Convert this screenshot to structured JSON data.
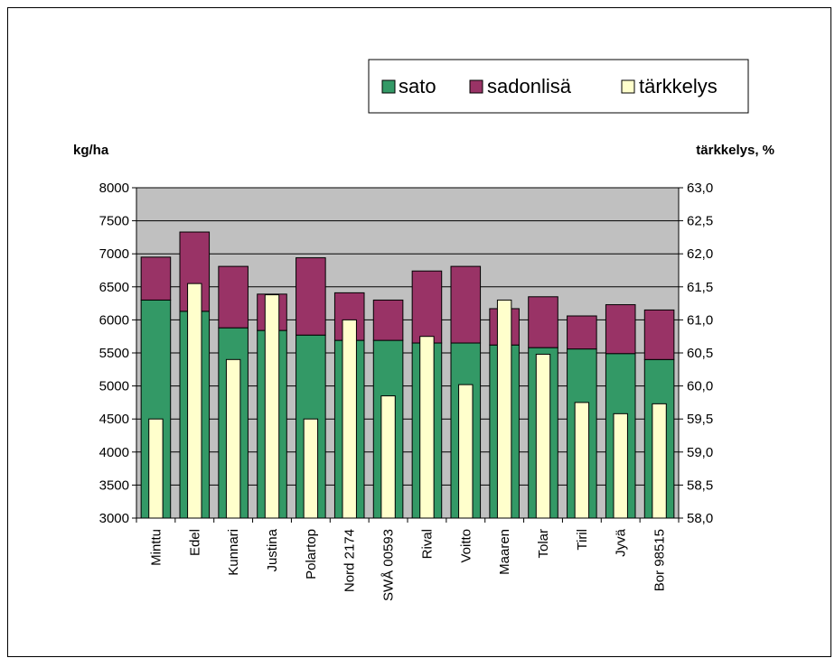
{
  "chart_data": {
    "type": "bar",
    "title": "",
    "ylabel": "kg/ha",
    "y2label": "tärkkelys, %",
    "ylim": [
      3000,
      8000
    ],
    "y2lim": [
      58.0,
      63.0
    ],
    "yticks": [
      "3000",
      "3500",
      "4000",
      "4500",
      "5000",
      "5500",
      "6000",
      "6500",
      "7000",
      "7500",
      "8000"
    ],
    "y2ticks": [
      "58,0",
      "58,5",
      "59,0",
      "59,5",
      "60,0",
      "60,5",
      "61,0",
      "61,5",
      "62,0",
      "62,5",
      "63,0"
    ],
    "grid": true,
    "legend_position": "top-right",
    "categories": [
      "Minttu",
      "Edel",
      "Kunnari",
      "Justina",
      "Polartop",
      "Nord 2174",
      "SWÅ 00593",
      "Rival",
      "Voitto",
      "Maaren",
      "Tolar",
      "Tiril",
      "Jyvä",
      "Bor 98515"
    ],
    "series": [
      {
        "name": "sato",
        "axis": "left",
        "stack": "yield",
        "color": "#339966",
        "values": [
          6300,
          6130,
          5880,
          5840,
          5770,
          5690,
          5690,
          5650,
          5650,
          5620,
          5580,
          5560,
          5490,
          5400
        ]
      },
      {
        "name": "sadonlisä",
        "axis": "left",
        "stack": "yield",
        "color": "#993366",
        "values": [
          650,
          1200,
          930,
          550,
          1170,
          720,
          610,
          1090,
          1160,
          550,
          770,
          500,
          740,
          750
        ]
      },
      {
        "name": "tärkkelys",
        "axis": "right",
        "color": "#ffffcc",
        "values": [
          59.5,
          61.55,
          60.4,
          61.38,
          59.5,
          61.0,
          59.85,
          60.75,
          60.02,
          61.3,
          60.48,
          59.75,
          59.58,
          59.73
        ]
      }
    ]
  }
}
